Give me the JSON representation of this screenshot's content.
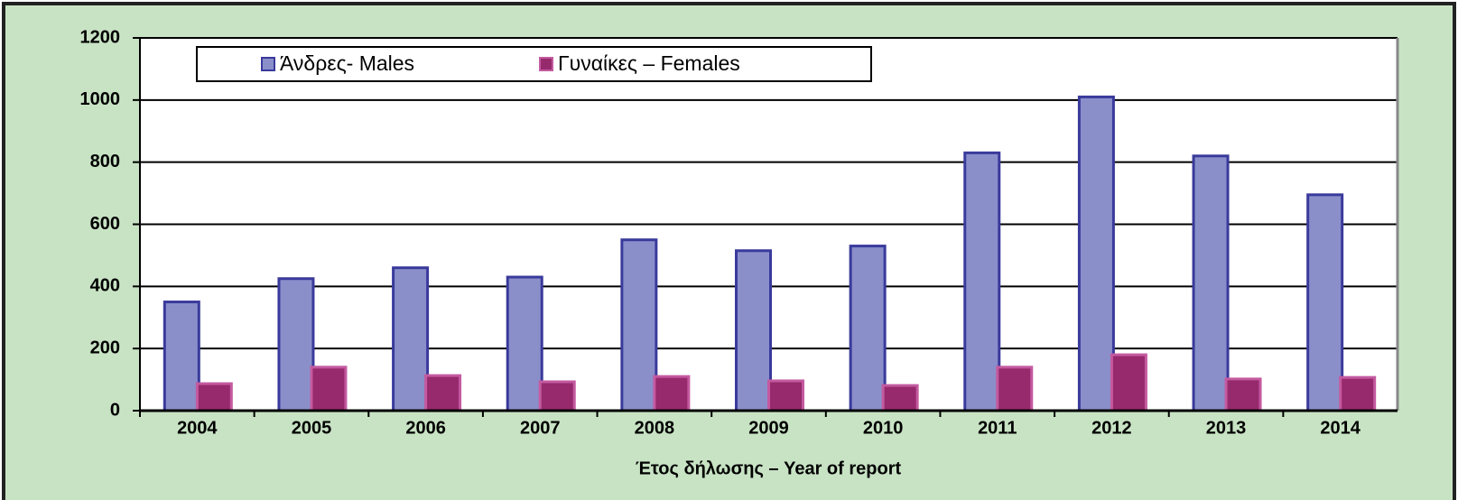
{
  "chart_data": {
    "type": "bar",
    "x_label": "Έτος δήλωσης – Year of report",
    "categories": [
      "2004",
      "2005",
      "2006",
      "2007",
      "2008",
      "2009",
      "2010",
      "2011",
      "2012",
      "2013",
      "2014"
    ],
    "series": [
      {
        "name": "Άνδρες- Males",
        "color": "#8a8fca",
        "values": [
          350,
          425,
          460,
          430,
          550,
          515,
          530,
          830,
          1010,
          820,
          695
        ]
      },
      {
        "name": "Γυναίκες – Females",
        "color": "#962a6c",
        "values": [
          87,
          140,
          113,
          93,
          110,
          96,
          81,
          140,
          180,
          102,
          107
        ]
      }
    ],
    "ylim": [
      0,
      1200
    ],
    "yticks": [
      0,
      200,
      400,
      600,
      800,
      1000,
      1200
    ],
    "grid": true,
    "legend": "top"
  }
}
